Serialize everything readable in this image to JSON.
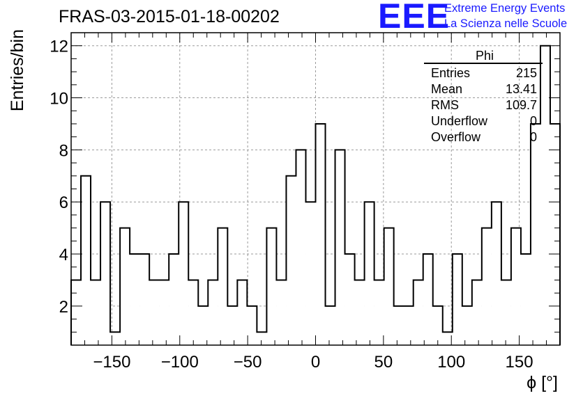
{
  "header": {
    "title": "FRAS-03-2015-01-18-00202",
    "logo_text": "EEE",
    "org_line1": "Extreme Energy Events",
    "org_line2": "La Scienza nelle Scuole",
    "brand_color": "#1a1aff"
  },
  "stats_box": {
    "name": "Phi",
    "rows": [
      {
        "key": "Entries",
        "value": "215"
      },
      {
        "key": "Mean",
        "value": "13.41"
      },
      {
        "key": "RMS",
        "value": "109.7"
      },
      {
        "key": "Underflow",
        "value": "0"
      },
      {
        "key": "Overflow",
        "value": "0"
      }
    ]
  },
  "chart_data": {
    "type": "histogram",
    "title": "FRAS-03-2015-01-18-00202",
    "xlabel": "ϕ [°]",
    "ylabel": "Entries/bin",
    "xlim": [
      -180,
      180
    ],
    "ylim": [
      0.5,
      12.5
    ],
    "xticks": [
      -150,
      -100,
      -50,
      0,
      50,
      100,
      150
    ],
    "yticks": [
      2,
      4,
      6,
      8,
      10,
      12
    ],
    "grid": true,
    "bin_width": 7.2,
    "bin_edges_start": -180,
    "values": [
      3,
      7,
      3,
      6,
      1,
      5,
      4,
      4,
      3,
      3,
      4,
      6,
      3,
      2,
      3,
      5,
      2,
      3,
      2,
      1,
      5,
      3,
      7,
      8,
      6,
      9,
      2,
      8,
      4,
      3,
      6,
      3,
      5,
      2,
      2,
      3,
      4,
      2,
      1,
      4,
      2,
      3,
      5,
      6,
      3,
      5,
      4,
      9,
      12,
      9
    ]
  }
}
